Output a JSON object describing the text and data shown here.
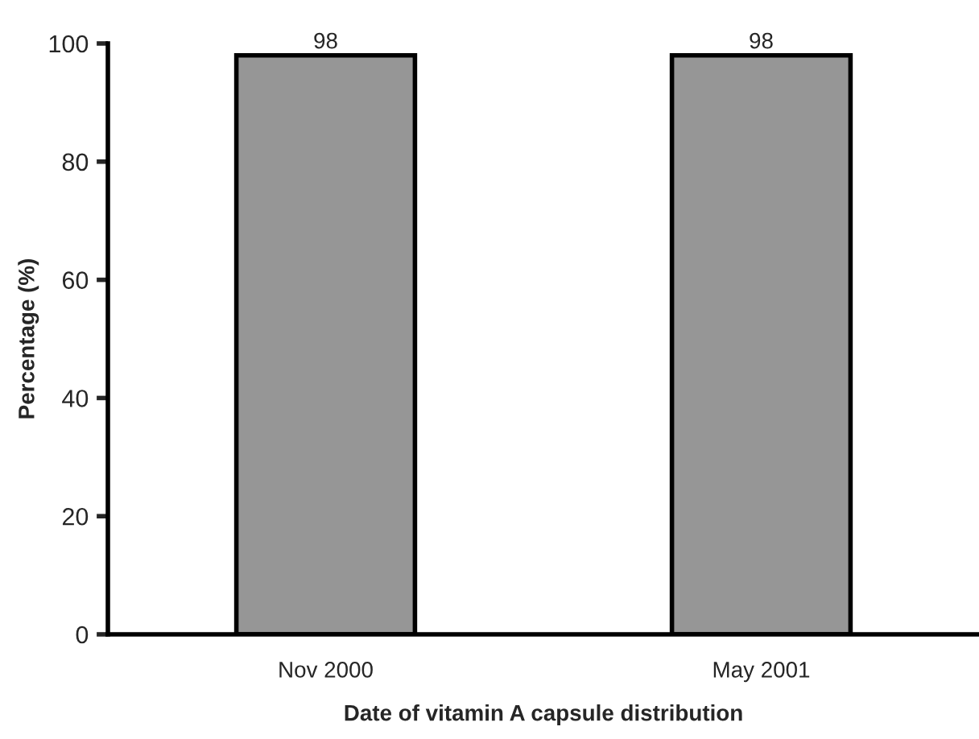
{
  "chart_data": {
    "type": "bar",
    "xlabel": "Date of vitamin A capsule distribution",
    "ylabel": "Percentage (%)",
    "categories": [
      "Nov 2000",
      "May 2001"
    ],
    "values": [
      98,
      98
    ],
    "color": "#969696",
    "ylim": [
      0,
      100
    ],
    "yticks": [
      0,
      20,
      40,
      60,
      80,
      100
    ],
    "grid": false,
    "data_labels": true
  }
}
